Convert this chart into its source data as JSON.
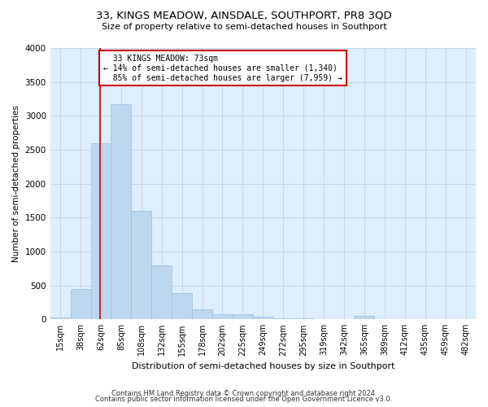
{
  "title_line1": "33, KINGS MEADOW, AINSDALE, SOUTHPORT, PR8 3QD",
  "title_line2": "Size of property relative to semi-detached houses in Southport",
  "xlabel": "Distribution of semi-detached houses by size in Southport",
  "ylabel": "Number of semi-detached properties",
  "footer_line1": "Contains HM Land Registry data © Crown copyright and database right 2024.",
  "footer_line2": "Contains public sector information licensed under the Open Government Licence v3.0.",
  "categories": [
    "15sqm",
    "38sqm",
    "62sqm",
    "85sqm",
    "108sqm",
    "132sqm",
    "155sqm",
    "178sqm",
    "202sqm",
    "225sqm",
    "249sqm",
    "272sqm",
    "295sqm",
    "319sqm",
    "342sqm",
    "365sqm",
    "389sqm",
    "412sqm",
    "435sqm",
    "459sqm",
    "482sqm"
  ],
  "values": [
    30,
    450,
    2600,
    3175,
    1600,
    800,
    390,
    150,
    80,
    70,
    45,
    20,
    10,
    5,
    5,
    50,
    3,
    0,
    0,
    0,
    0
  ],
  "bar_color": "#bdd7ee",
  "bar_edgecolor": "#9dbfe0",
  "property_value": 73,
  "property_label": "33 KINGS MEADOW: 73sqm",
  "pct_smaller": 14,
  "pct_larger": 85,
  "n_smaller": 1340,
  "n_larger": 7959,
  "vline_color": "#cc0000",
  "annotation_box_edgecolor": "#cc0000",
  "grid_color": "#c8d8e8",
  "background_color": "#ddeeff",
  "ylim": [
    0,
    4000
  ],
  "yticks": [
    0,
    500,
    1000,
    1500,
    2000,
    2500,
    3000,
    3500,
    4000
  ]
}
